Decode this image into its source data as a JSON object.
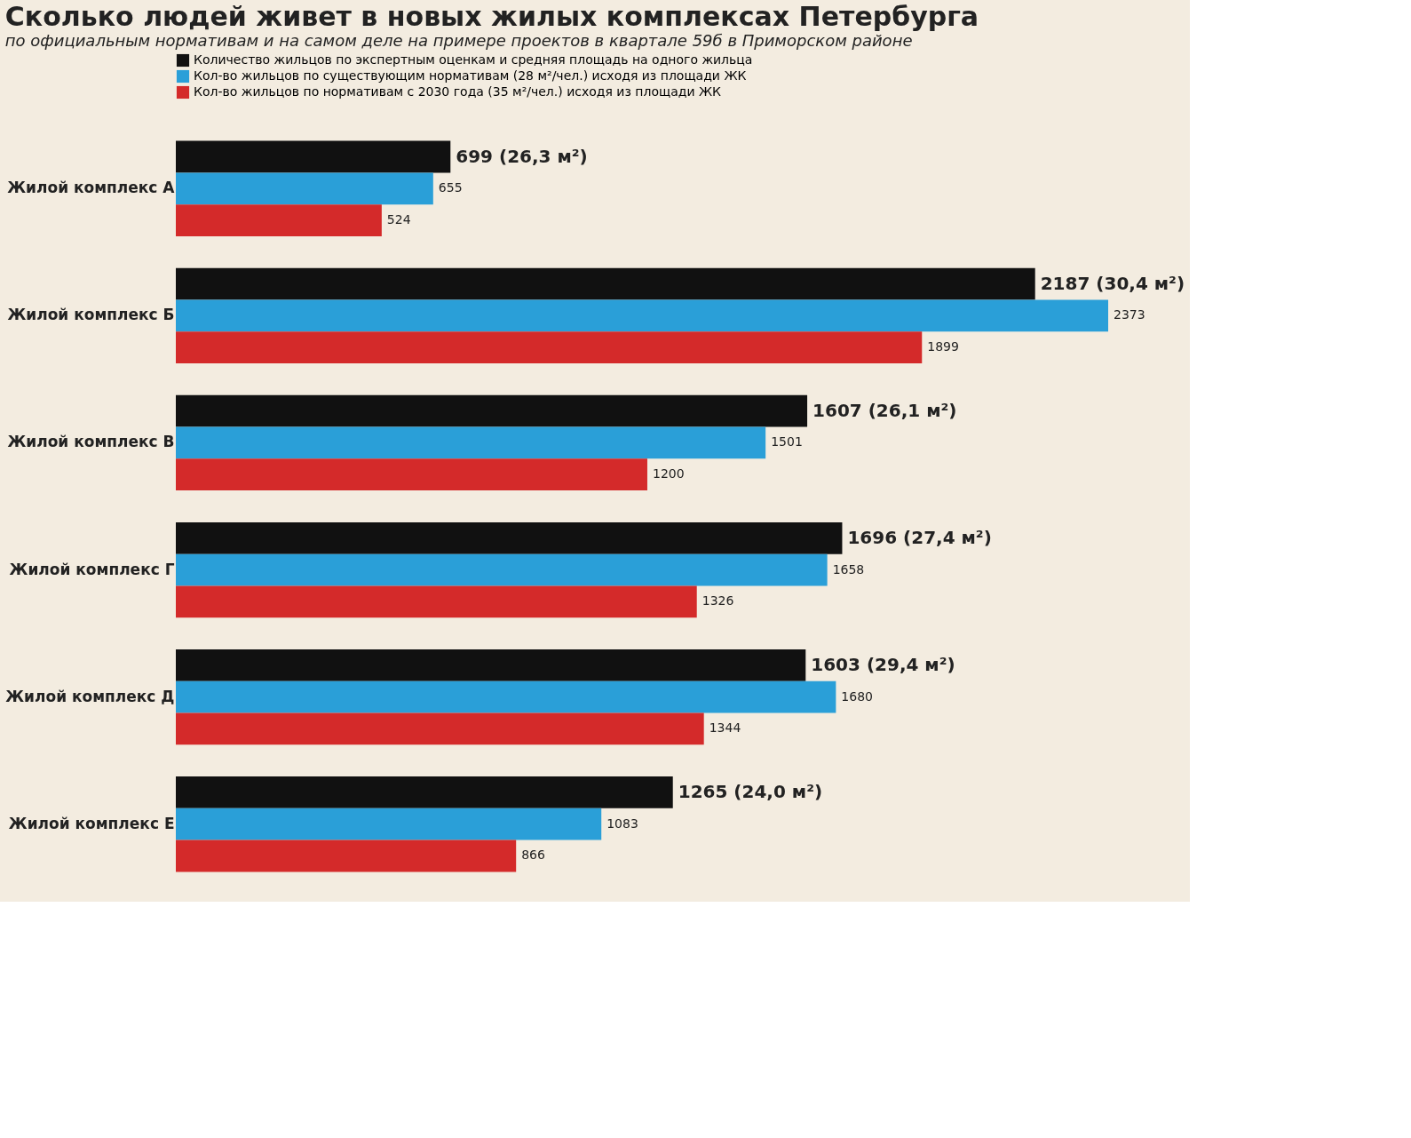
{
  "chart_data": {
    "type": "bar",
    "orientation": "horizontal",
    "title": "Сколько людей живет в новых жилых комплексах Петербурга",
    "subtitle": "по официальным нормативам и на самом деле на примере проектов в квартале 59б в Приморском районе",
    "categories": [
      "Жилой комплекс А",
      "Жилой комплекс Б",
      "Жилой комплекс В",
      "Жилой комплекс Г",
      "Жилой комплекс Д",
      "Жилой комплекс Е"
    ],
    "series": [
      {
        "name": "Количество жильцов по экспертным оценкам и средняя площадь на одного жильца",
        "color": "#111111",
        "values": [
          699,
          2187,
          1607,
          1696,
          1603,
          1265
        ],
        "value_labels": [
          "699 (26,3 м²)",
          "2187 (30,4 м²)",
          "1607 (26,1 м²)",
          "1696 (27,4 м²)",
          "1603 (29,4 м²)",
          "1265 (24,0 м²)"
        ]
      },
      {
        "name": "Кол-во жильцов по существующим нормативам (28 м²/чел.) исходя из площади ЖК",
        "color": "#2a9fd8",
        "values": [
          655,
          2373,
          1501,
          1658,
          1680,
          1083
        ],
        "value_labels": [
          "655",
          "2373",
          "1501",
          "1658",
          "1680",
          "1083"
        ]
      },
      {
        "name": "Кол-во жильцов по нормативам с 2030 года (35 м²/чел.) исходя из площади ЖК",
        "color": "#d42a2a",
        "values": [
          524,
          1899,
          1200,
          1326,
          1344,
          866
        ],
        "value_labels": [
          "524",
          "1899",
          "1200",
          "1326",
          "1344",
          "866"
        ]
      }
    ],
    "legend": "top",
    "tick_labels": "y"
  }
}
